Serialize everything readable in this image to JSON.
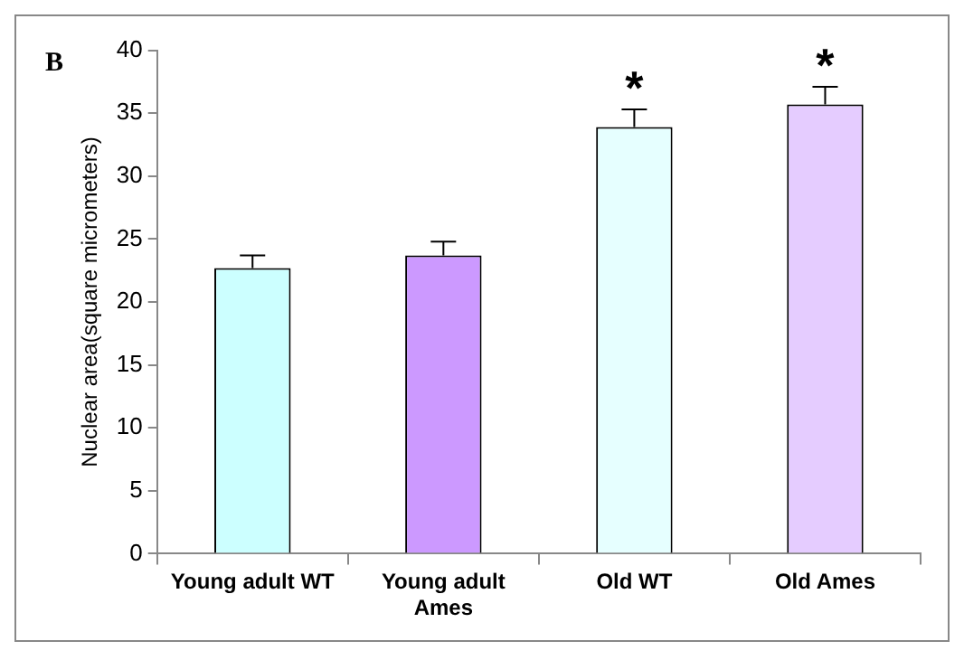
{
  "chart_data": {
    "type": "bar",
    "ylabel": "Nuclear area(square micrometers)",
    "categories": [
      "Young adult WT",
      "Young adult\nAmes",
      "Old WT",
      "Old Ames"
    ],
    "values": [
      22.7,
      23.7,
      33.9,
      35.7
    ],
    "colors": [
      "#ccffff",
      "#cc99ff",
      "#e6ffff",
      "#e5ccff"
    ],
    "errors": [
      [
        22.7,
        23.7
      ],
      [
        23.7,
        24.8
      ],
      [
        33.9,
        35.3
      ],
      [
        35.7,
        37.1
      ]
    ],
    "ylim": [
      0,
      40
    ],
    "yticks": [
      0,
      5,
      10,
      15,
      20,
      25,
      30,
      35,
      40
    ],
    "grid": false,
    "legend": false,
    "annotations": [
      "B",
      {
        "text": "*",
        "x": "Old WT",
        "y": 35.3
      },
      {
        "text": "*",
        "x": "Old Ames",
        "y": 37.1
      }
    ]
  }
}
